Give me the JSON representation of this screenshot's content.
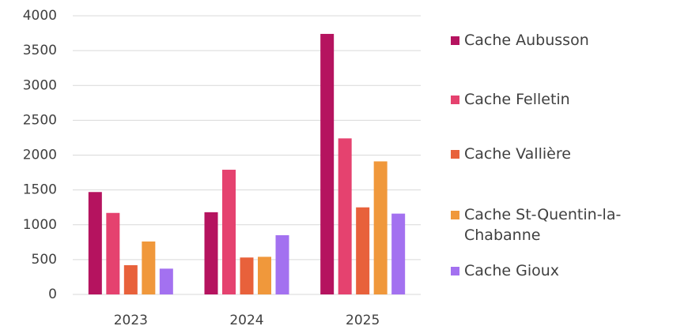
{
  "chart_data": {
    "type": "bar",
    "categories": [
      "2023",
      "2024",
      "2025"
    ],
    "series": [
      {
        "name": "Cache Aubusson",
        "color": "#b5135f",
        "values": [
          1470,
          1180,
          3740
        ]
      },
      {
        "name": "Cache Felletin",
        "color": "#e5426f",
        "values": [
          1170,
          1790,
          2240
        ]
      },
      {
        "name": "Cache Vallière",
        "color": "#e8613b",
        "values": [
          420,
          530,
          1250
        ]
      },
      {
        "name": "Cache St-Quentin-la-Chabanne",
        "color": "#f0983b",
        "values": [
          760,
          540,
          1910
        ]
      },
      {
        "name": "Cache Gioux",
        "color": "#a371f0",
        "values": [
          370,
          850,
          1160
        ]
      }
    ],
    "ylim": [
      0,
      4000
    ],
    "yticks": [
      0,
      500,
      1000,
      1500,
      2000,
      2500,
      3000,
      3500,
      4000
    ],
    "grid": true,
    "legend": "right"
  }
}
